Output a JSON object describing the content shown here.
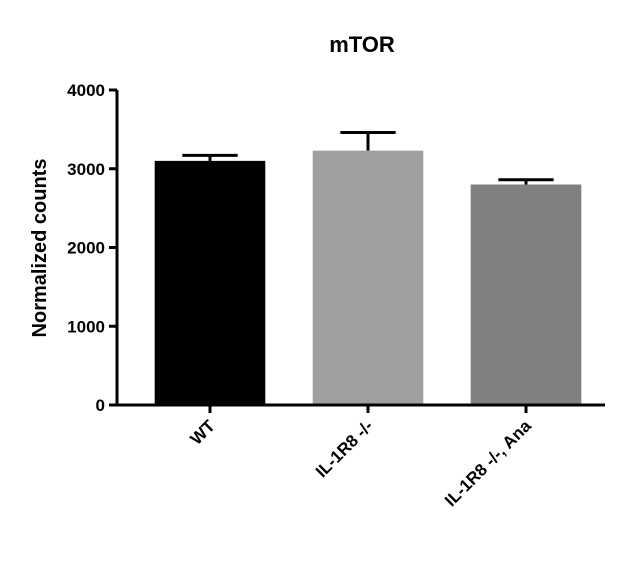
{
  "chart_data": {
    "type": "bar",
    "title": "mTOR",
    "ylabel": "Normalized counts",
    "categories": [
      "WT",
      "IL-1R8 -/-",
      "IL-1R8 -/-, Ana"
    ],
    "values": [
      3100,
      3230,
      2800
    ],
    "errors": [
      70,
      230,
      60
    ],
    "colors": [
      "#000000",
      "#a0a0a2",
      "#808080"
    ],
    "ylim": [
      0,
      4000
    ],
    "yticks": [
      0,
      1000,
      2000,
      3000,
      4000
    ],
    "grid": false
  }
}
